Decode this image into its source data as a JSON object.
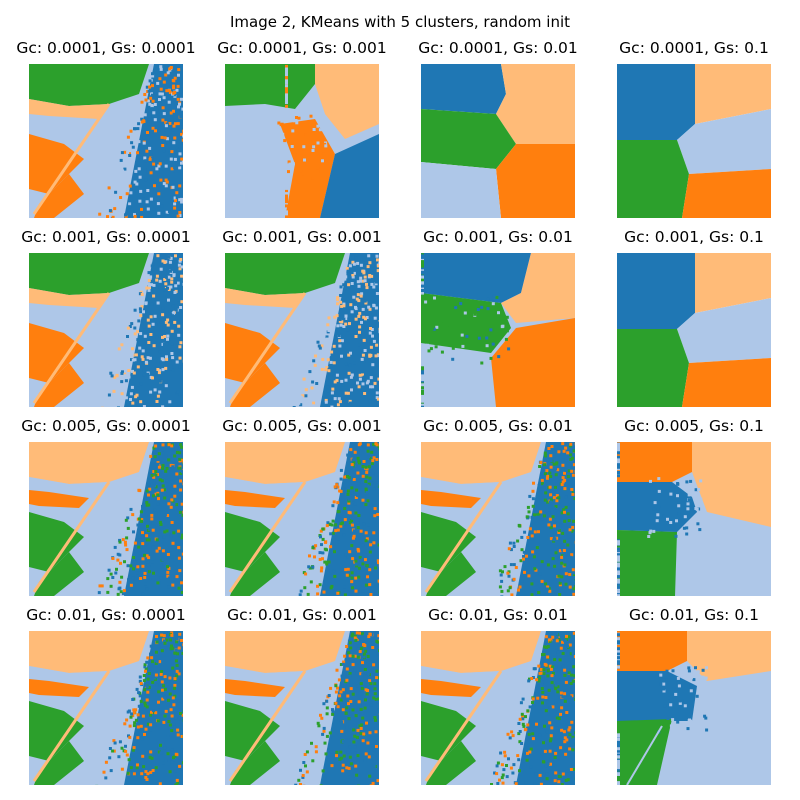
{
  "title": "Image 2, KMeans with 5 clusters, random init",
  "colors": {
    "dark_blue": "#1f77b4",
    "light_blue": "#aec7e8",
    "orange": "#ff7f0e",
    "light_orange": "#ffbb78",
    "green": "#2ca02c"
  },
  "panels": [
    {
      "title": "Gc: 0.0001, Gs: 0.0001",
      "style": "texture",
      "scheme": "A"
    },
    {
      "title": "Gc: 0.0001, Gs: 0.001",
      "style": "regions",
      "scheme": "S1"
    },
    {
      "title": "Gc: 0.0001, Gs: 0.01",
      "style": "voronoi",
      "scheme": "V1"
    },
    {
      "title": "Gc: 0.0001, Gs: 0.1",
      "style": "voronoi",
      "scheme": "V2"
    },
    {
      "title": "Gc: 0.001, Gs: 0.0001",
      "style": "texture",
      "scheme": "B"
    },
    {
      "title": "Gc: 0.001, Gs: 0.001",
      "style": "texture",
      "scheme": "B"
    },
    {
      "title": "Gc: 0.001, Gs: 0.01",
      "style": "regions",
      "scheme": "S2"
    },
    {
      "title": "Gc: 0.001, Gs: 0.1",
      "style": "voronoi",
      "scheme": "V2"
    },
    {
      "title": "Gc: 0.005, Gs: 0.0001",
      "style": "texture",
      "scheme": "C"
    },
    {
      "title": "Gc: 0.005, Gs: 0.001",
      "style": "texture",
      "scheme": "C"
    },
    {
      "title": "Gc: 0.005, Gs: 0.01",
      "style": "texture",
      "scheme": "C2"
    },
    {
      "title": "Gc: 0.005, Gs: 0.1",
      "style": "regions",
      "scheme": "S3"
    },
    {
      "title": "Gc: 0.01, Gs: 0.0001",
      "style": "texture",
      "scheme": "C"
    },
    {
      "title": "Gc: 0.01, Gs: 0.001",
      "style": "texture",
      "scheme": "C"
    },
    {
      "title": "Gc: 0.01, Gs: 0.01",
      "style": "texture",
      "scheme": "C2"
    },
    {
      "title": "Gc: 0.01, Gs: 0.1",
      "style": "regions",
      "scheme": "S4"
    }
  ]
}
